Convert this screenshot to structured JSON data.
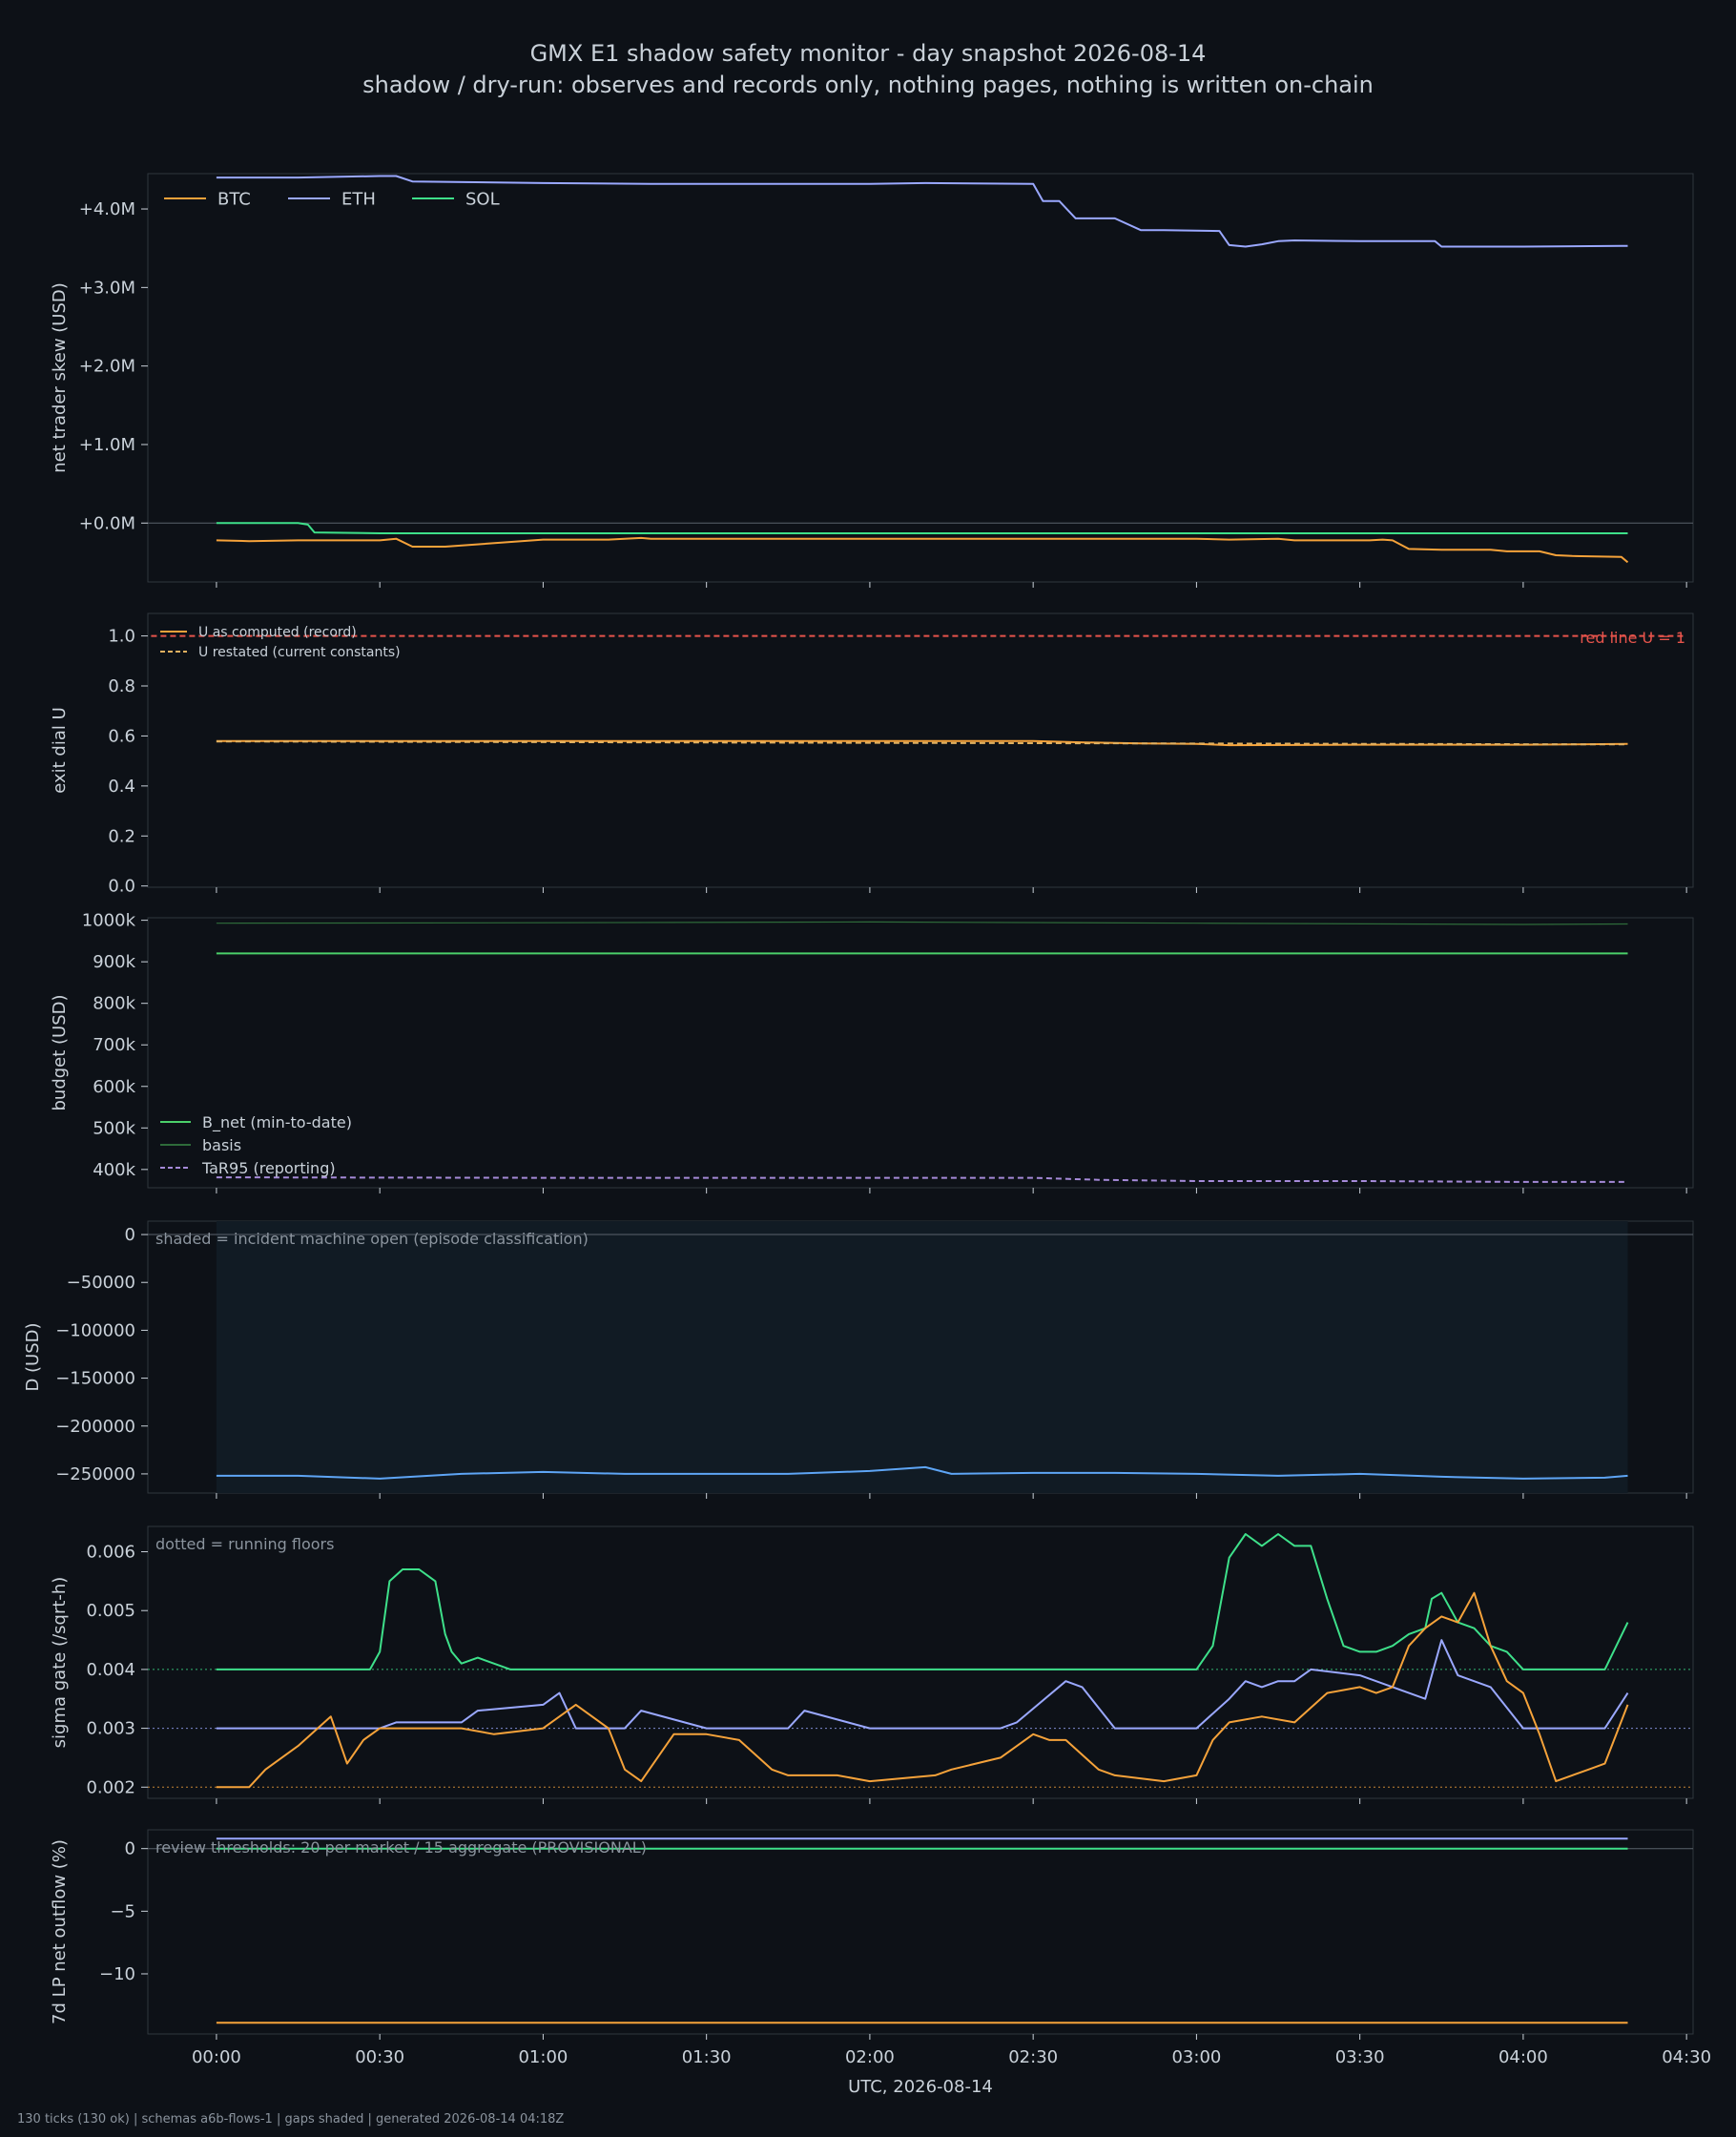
{
  "title": "GMX E1 shadow safety monitor - day snapshot 2026-08-14",
  "subtitle": "shadow / dry-run: observes and records only, nothing pages, nothing is written on-chain",
  "footer": "130 ticks (130 ok) | schemas a6b-flows-1 | gaps shaded | generated 2026-08-14 04:18Z",
  "colors": {
    "background": "#0d1117",
    "panel_border": "#30363d",
    "text": "#c9d1d9",
    "btc": "#f5a23a",
    "eth": "#9aa8ff",
    "sol": "#3ee08a",
    "red": "#e5534b",
    "b_net": "#4bd06a",
    "basis": "#2e6b3a",
    "tar95": "#a58ad8",
    "d": "#5ea5f5",
    "shade": "#111b24",
    "note": "#8b949e"
  },
  "chart_data": [
    {
      "type": "line",
      "ylabel": "net trader skew (USD)",
      "ylim": [
        -0.75,
        4.45
      ],
      "yticks": [
        0,
        1,
        2,
        3,
        4
      ],
      "ytick_labels": [
        "+0.0M",
        "+1.0M",
        "+2.0M",
        "+3.0M",
        "+4.0M"
      ],
      "zero_line": true,
      "legend": "top-left",
      "series": [
        {
          "name": "BTC",
          "color": "#f5a23a",
          "x_hours": [
            0,
            0.1,
            0.25,
            0.5,
            1.0,
            1.2,
            1.25,
            1.3,
            1.33,
            1.35,
            1.4,
            1.5,
            1.75,
            2.0,
            2.5,
            2.75,
            3.0,
            3.1,
            3.25,
            3.3,
            3.5,
            3.53,
            3.57,
            3.6,
            3.65,
            3.75,
            3.9,
            3.95,
            4.05,
            4.1,
            4.15,
            4.3,
            4.32
          ],
          "values": [
            -0.22,
            -0.23,
            -0.22,
            -0.22,
            -0.21,
            -0.21,
            -0.2,
            -0.19,
            -0.2,
            -0.2,
            -0.2,
            -0.2,
            -0.2,
            -0.2,
            -0.2,
            -0.2,
            -0.2,
            -0.21,
            -0.2,
            -0.22,
            -0.22,
            -0.22,
            -0.21,
            -0.22,
            -0.33,
            -0.34,
            -0.34,
            -0.36,
            -0.36,
            -0.41,
            -0.42,
            -0.43,
            -0.5
          ],
          "extra_x": [
            0.55,
            0.6,
            0.7
          ],
          "extra_values": [
            -0.2,
            -0.3,
            -0.3
          ]
        },
        {
          "name": "ETH",
          "color": "#9aa8ff",
          "x_hours": [
            0,
            0.25,
            0.5,
            0.55,
            0.6,
            1.0,
            1.33,
            1.5,
            1.75,
            2.0,
            2.17,
            2.5,
            2.53,
            2.58,
            2.63,
            2.75,
            2.83,
            2.9,
            3.07,
            3.1,
            3.15,
            3.2,
            3.25,
            3.3,
            3.5,
            3.73,
            3.75,
            4.0,
            4.3,
            4.32
          ],
          "values": [
            4.4,
            4.4,
            4.42,
            4.42,
            4.35,
            4.33,
            4.32,
            4.32,
            4.32,
            4.32,
            4.33,
            4.32,
            4.1,
            4.1,
            3.88,
            3.88,
            3.73,
            3.73,
            3.72,
            3.54,
            3.52,
            3.55,
            3.59,
            3.6,
            3.59,
            3.59,
            3.52,
            3.52,
            3.53,
            3.53
          ]
        },
        {
          "name": "SOL",
          "color": "#3ee08a",
          "x_hours": [
            0,
            0.25,
            0.28,
            0.3,
            0.5,
            1.0,
            2.0,
            3.0,
            4.0,
            4.32
          ],
          "values": [
            0.0,
            0.0,
            -0.02,
            -0.12,
            -0.13,
            -0.13,
            -0.13,
            -0.13,
            -0.13,
            -0.13
          ]
        }
      ]
    },
    {
      "type": "line",
      "ylabel": "exit dial U",
      "ylim": [
        -0.005,
        1.09
      ],
      "yticks": [
        0.0,
        0.2,
        0.4,
        0.6,
        0.8,
        1.0
      ],
      "ytick_labels": [
        "0.0",
        "0.2",
        "0.4",
        "0.6",
        "0.8",
        "1.0"
      ],
      "legend": "top-left",
      "annotation": "red line U = 1",
      "series": [
        {
          "name": "U as computed (record)",
          "color": "#f5a23a",
          "x_hours": [
            0,
            0.3,
            0.6,
            1.0,
            1.5,
            2.0,
            2.5,
            2.63,
            2.75,
            2.83,
            3.0,
            3.1,
            3.5,
            4.0,
            4.32
          ],
          "values": [
            0.58,
            0.58,
            0.58,
            0.58,
            0.58,
            0.58,
            0.58,
            0.575,
            0.572,
            0.57,
            0.568,
            0.563,
            0.565,
            0.565,
            0.568
          ]
        },
        {
          "name": "U restated (current constants)",
          "color": "#e0b060",
          "dashed": true,
          "x_hours": [
            0,
            4.32
          ],
          "values": [
            0.578,
            0.566
          ]
        },
        {
          "name": "red line U = 1",
          "color": "#e5534b",
          "dashed": true,
          "x_hours": [
            -0.2,
            4.5
          ],
          "values": [
            1.0,
            1.0
          ]
        }
      ]
    },
    {
      "type": "line",
      "ylabel": "budget (USD)",
      "ylim": [
        356000,
        1006000
      ],
      "yticks": [
        400000,
        500000,
        600000,
        700000,
        800000,
        900000,
        1000000
      ],
      "ytick_labels": [
        "400k",
        "500k",
        "600k",
        "700k",
        "800k",
        "900k",
        "1000k"
      ],
      "legend": "bottom-left",
      "series": [
        {
          "name": "B_net (min-to-date)",
          "color": "#4bd06a",
          "x_hours": [
            0,
            4.32
          ],
          "values": [
            920000,
            920000
          ]
        },
        {
          "name": "basis",
          "color": "#2e6b3a",
          "x_hours": [
            0,
            1.0,
            2.0,
            3.0,
            4.0,
            4.32
          ],
          "values": [
            993000,
            994000,
            996000,
            993000,
            990000,
            991000
          ]
        },
        {
          "name": "TaR95 (reporting)",
          "color": "#a58ad8",
          "dashed": true,
          "x_hours": [
            0,
            1.0,
            2.0,
            2.5,
            2.7,
            3.0,
            3.5,
            4.0,
            4.32
          ],
          "values": [
            381000,
            380000,
            380000,
            380000,
            375000,
            372000,
            372000,
            370000,
            370000
          ]
        }
      ]
    },
    {
      "type": "line",
      "ylabel": "D (USD)",
      "ylim": [
        -270000,
        14000
      ],
      "yticks": [
        -250000,
        -200000,
        -150000,
        -100000,
        -50000,
        0
      ],
      "ytick_labels": [
        "−250000",
        "−200000",
        "−150000",
        "−100000",
        "−50000",
        "0"
      ],
      "zero_line": true,
      "annotation": "shaded = incident machine open (episode classification)",
      "shaded_span_hours": [
        0,
        4.32
      ],
      "series": [
        {
          "name": "D",
          "color": "#5ea5f5",
          "x_hours": [
            0,
            0.25,
            0.5,
            0.75,
            1.0,
            1.25,
            1.5,
            1.75,
            2.0,
            2.17,
            2.25,
            2.5,
            2.75,
            3.0,
            3.25,
            3.5,
            3.75,
            4.0,
            4.25,
            4.32
          ],
          "values": [
            -252000,
            -252000,
            -255000,
            -250000,
            -248000,
            -250000,
            -250000,
            -250000,
            -247000,
            -243000,
            -250000,
            -249000,
            -249000,
            -250000,
            -252000,
            -250000,
            -253000,
            -255000,
            -254000,
            -252000
          ]
        }
      ]
    },
    {
      "type": "line",
      "ylabel": "sigma gate (/sqrt-h)",
      "ylim": [
        0.00181,
        0.00643
      ],
      "yticks": [
        0.002,
        0.003,
        0.004,
        0.005,
        0.006
      ],
      "ytick_labels": [
        "0.002",
        "0.003",
        "0.004",
        "0.005",
        "0.006"
      ],
      "annotation": "dotted = running floors",
      "floors": [
        {
          "value": 0.004,
          "color": "#3ee08a"
        },
        {
          "value": 0.003,
          "color": "#9aa8ff"
        },
        {
          "value": 0.002,
          "color": "#f5a23a"
        }
      ],
      "series": [
        {
          "name": "SOL",
          "color": "#3ee08a",
          "x_hours": [
            0,
            0.47,
            0.5,
            0.53,
            0.57,
            0.62,
            0.67,
            0.7,
            0.72,
            0.75,
            0.8,
            0.9,
            1.0,
            2.0,
            3.0,
            3.05,
            3.1,
            3.15,
            3.2,
            3.25,
            3.3,
            3.35,
            3.4,
            3.45,
            3.5,
            3.55,
            3.6,
            3.65,
            3.7,
            3.72,
            3.75,
            3.8,
            3.85,
            3.9,
            3.95,
            4.0,
            4.25,
            4.32
          ],
          "values": [
            0.004,
            0.004,
            0.0043,
            0.0055,
            0.0057,
            0.0057,
            0.0055,
            0.0046,
            0.0043,
            0.0041,
            0.0042,
            0.004,
            0.004,
            0.004,
            0.004,
            0.0044,
            0.0059,
            0.0063,
            0.0061,
            0.0063,
            0.0061,
            0.0061,
            0.0052,
            0.0044,
            0.0043,
            0.0043,
            0.0044,
            0.0046,
            0.0047,
            0.0052,
            0.0053,
            0.0048,
            0.0047,
            0.0044,
            0.0043,
            0.004,
            0.004,
            0.0048
          ]
        },
        {
          "name": "ETH",
          "color": "#9aa8ff",
          "x_hours": [
            0,
            0.5,
            0.55,
            0.75,
            0.8,
            1.0,
            1.05,
            1.1,
            1.25,
            1.3,
            1.5,
            1.75,
            1.8,
            2.0,
            2.25,
            2.4,
            2.45,
            2.6,
            2.65,
            2.75,
            3.0,
            3.1,
            3.15,
            3.2,
            3.25,
            3.3,
            3.35,
            3.5,
            3.7,
            3.75,
            3.8,
            3.9,
            4.0,
            4.25,
            4.32
          ],
          "values": [
            0.003,
            0.003,
            0.0031,
            0.0031,
            0.0033,
            0.0034,
            0.0036,
            0.003,
            0.003,
            0.0033,
            0.003,
            0.003,
            0.0033,
            0.003,
            0.003,
            0.003,
            0.0031,
            0.0038,
            0.0037,
            0.003,
            0.003,
            0.0035,
            0.0038,
            0.0037,
            0.0038,
            0.0038,
            0.004,
            0.0039,
            0.0035,
            0.0045,
            0.0039,
            0.0037,
            0.003,
            0.003,
            0.0036
          ]
        },
        {
          "name": "BTC",
          "color": "#f5a23a",
          "x_hours": [
            0,
            0.1,
            0.15,
            0.25,
            0.35,
            0.4,
            0.45,
            0.5,
            0.55,
            0.75,
            0.85,
            1.0,
            1.1,
            1.2,
            1.25,
            1.3,
            1.4,
            1.5,
            1.6,
            1.7,
            1.75,
            1.8,
            1.9,
            2.0,
            2.2,
            2.25,
            2.4,
            2.5,
            2.55,
            2.6,
            2.7,
            2.75,
            2.9,
            3.0,
            3.05,
            3.1,
            3.2,
            3.3,
            3.4,
            3.5,
            3.55,
            3.6,
            3.65,
            3.7,
            3.75,
            3.8,
            3.85,
            3.9,
            3.95,
            4.0,
            4.05,
            4.1,
            4.15,
            4.2,
            4.25,
            4.32
          ],
          "values": [
            0.002,
            0.002,
            0.0023,
            0.0027,
            0.0032,
            0.0024,
            0.0028,
            0.003,
            0.003,
            0.003,
            0.0029,
            0.003,
            0.0034,
            0.003,
            0.0023,
            0.0021,
            0.0029,
            0.0029,
            0.0028,
            0.0023,
            0.0022,
            0.0022,
            0.0022,
            0.0021,
            0.0022,
            0.0023,
            0.0025,
            0.0029,
            0.0028,
            0.0028,
            0.0023,
            0.0022,
            0.0021,
            0.0022,
            0.0028,
            0.0031,
            0.0032,
            0.0031,
            0.0036,
            0.0037,
            0.0036,
            0.0037,
            0.0044,
            0.0047,
            0.0049,
            0.0048,
            0.0053,
            0.0044,
            0.0038,
            0.0036,
            0.0029,
            0.0021,
            0.0022,
            0.0023,
            0.0024,
            0.0034
          ]
        }
      ]
    },
    {
      "type": "line",
      "ylabel": "7d LP net outflow (%)",
      "ylim": [
        -14.8,
        1.5
      ],
      "yticks": [
        -10,
        -5,
        0
      ],
      "ytick_labels": [
        "−10",
        "−5",
        "0"
      ],
      "zero_line": true,
      "annotation": "review thresholds: 20 per market / 15 aggregate (PROVISIONAL)",
      "series": [
        {
          "name": "ETH",
          "color": "#9aa8ff",
          "x_hours": [
            0,
            4.32
          ],
          "values": [
            0.8,
            0.8
          ]
        },
        {
          "name": "SOL",
          "color": "#3ee08a",
          "x_hours": [
            0,
            4.32
          ],
          "values": [
            0.0,
            0.0
          ]
        },
        {
          "name": "BTC",
          "color": "#f5a23a",
          "x_hours": [
            0,
            4.32
          ],
          "values": [
            -13.9,
            -13.9
          ]
        }
      ]
    }
  ],
  "x_axis": {
    "label": "UTC, 2026-08-14",
    "ticks": [
      0,
      0.5,
      1.0,
      1.5,
      2.0,
      2.5,
      3.0,
      3.5,
      4.0,
      4.5
    ],
    "tick_labels": [
      "00:00",
      "00:30",
      "01:00",
      "01:30",
      "02:00",
      "02:30",
      "03:00",
      "03:30",
      "04:00",
      "04:30"
    ],
    "range": [
      -0.21,
      4.52
    ]
  }
}
